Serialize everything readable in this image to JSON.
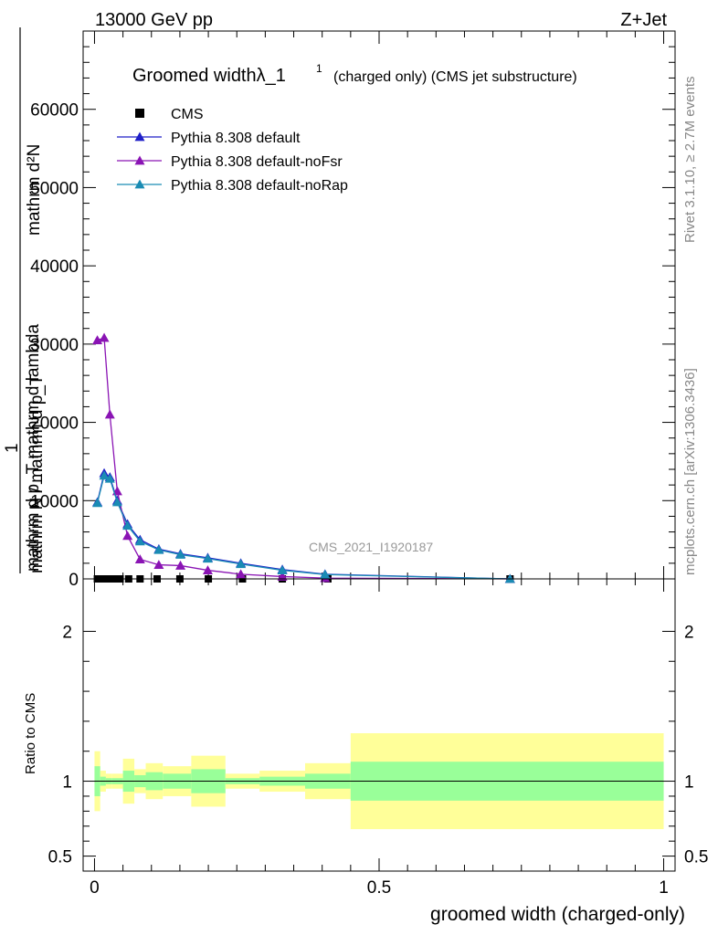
{
  "header": {
    "left": "13000 GeV pp",
    "right": "Z+Jet"
  },
  "side_labels": {
    "rivet": "Rivet 3.1.10, ≥ 2.7M events",
    "mcplots": "mcplots.cern.ch [arXiv:1306.3436]"
  },
  "watermark": "CMS_2021_I1920187",
  "colors": {
    "data": "#000000",
    "default": "#1f1fc8",
    "noFsr": "#8a14b4",
    "noRap": "#1a8cb4",
    "band_inner": "#99ff99",
    "band_outer": "#ffff99"
  },
  "chart_data": [
    {
      "type": "line",
      "title": "Groomed widthλ_1",
      "title_sup": "1",
      "subtitle": "(charged only) (CMS jet substructure)",
      "ylabel_num": "mathrm d²N",
      "ylabel_den": "mathrm d p_T mathrm d lambda",
      "ylabel_pre1": "1",
      "ylabel_pre2": "mathrm N / mathrm d p_T",
      "ylabel_sub": "T",
      "xlim": [
        -0.02,
        1.02
      ],
      "ylim": [
        0,
        70000
      ],
      "yticks": [
        {
          "v": 0,
          "label": "0"
        },
        {
          "v": 10000,
          "label": "10000"
        },
        {
          "v": 20000,
          "label": "20000"
        },
        {
          "v": 30000,
          "label": "30000"
        },
        {
          "v": 40000,
          "label": "40000"
        },
        {
          "v": 50000,
          "label": "50000"
        },
        {
          "v": 60000,
          "label": "60000"
        }
      ],
      "legend_position": "top-left",
      "series": [
        {
          "name": "CMS",
          "marker": "square",
          "x": [
            0.005,
            0.015,
            0.025,
            0.035,
            0.045,
            0.06,
            0.08,
            0.11,
            0.15,
            0.2,
            0.26,
            0.33,
            0.41,
            0.73
          ],
          "y": [
            0,
            0,
            0,
            0,
            0,
            0,
            0,
            0,
            0,
            0,
            0,
            0,
            0,
            0
          ]
        },
        {
          "name": "Pythia 8.308 default",
          "marker": "triangle",
          "x": [
            0.005,
            0.017,
            0.027,
            0.04,
            0.058,
            0.08,
            0.113,
            0.151,
            0.199,
            0.257,
            0.33,
            0.405,
            0.73
          ],
          "y": [
            9800,
            13500,
            13000,
            10000,
            7000,
            5000,
            3800,
            3200,
            2700,
            2000,
            1200,
            600,
            0
          ]
        },
        {
          "name": "Pythia 8.308 default-noFsr",
          "marker": "triangle",
          "x": [
            0.005,
            0.017,
            0.027,
            0.04,
            0.058,
            0.08,
            0.113,
            0.151,
            0.199,
            0.257,
            0.33,
            0.405,
            0.73
          ],
          "y": [
            30500,
            30800,
            21000,
            11200,
            5500,
            2500,
            1800,
            1700,
            1100,
            600,
            300,
            100,
            0
          ]
        },
        {
          "name": "Pythia 8.308 default-noRap",
          "marker": "triangle",
          "x": [
            0.005,
            0.017,
            0.027,
            0.04,
            0.058,
            0.08,
            0.113,
            0.151,
            0.199,
            0.257,
            0.33,
            0.405,
            0.73
          ],
          "y": [
            9700,
            13200,
            12800,
            9800,
            6800,
            4800,
            3700,
            3100,
            2600,
            1900,
            1100,
            550,
            0
          ]
        }
      ]
    },
    {
      "type": "area",
      "ylabel": "Ratio to CMS",
      "xlabel": "groomed width (charged-only)",
      "xlim": [
        -0.02,
        1.02
      ],
      "ylim": [
        0.4,
        2.35
      ],
      "xticks": [
        {
          "v": 0,
          "label": "0"
        },
        {
          "v": 0.5,
          "label": "0.5"
        },
        {
          "v": 1,
          "label": "1"
        }
      ],
      "yticks": [
        {
          "v": 0.5,
          "label": "0.5"
        },
        {
          "v": 1,
          "label": "1"
        },
        {
          "v": 2,
          "label": "2"
        }
      ],
      "bins": [
        {
          "x0": 0.0,
          "x1": 0.01,
          "inner": [
            0.9,
            1.1
          ],
          "outer": [
            0.8,
            1.2
          ]
        },
        {
          "x0": 0.01,
          "x1": 0.02,
          "inner": [
            0.97,
            1.03
          ],
          "outer": [
            0.93,
            1.07
          ]
        },
        {
          "x0": 0.02,
          "x1": 0.03,
          "inner": [
            0.98,
            1.02
          ],
          "outer": [
            0.95,
            1.05
          ]
        },
        {
          "x0": 0.03,
          "x1": 0.05,
          "inner": [
            0.98,
            1.02
          ],
          "outer": [
            0.95,
            1.05
          ]
        },
        {
          "x0": 0.05,
          "x1": 0.07,
          "inner": [
            0.93,
            1.07
          ],
          "outer": [
            0.85,
            1.15
          ]
        },
        {
          "x0": 0.07,
          "x1": 0.09,
          "inner": [
            0.96,
            1.04
          ],
          "outer": [
            0.92,
            1.08
          ]
        },
        {
          "x0": 0.09,
          "x1": 0.12,
          "inner": [
            0.94,
            1.06
          ],
          "outer": [
            0.88,
            1.12
          ]
        },
        {
          "x0": 0.12,
          "x1": 0.17,
          "inner": [
            0.95,
            1.05
          ],
          "outer": [
            0.9,
            1.1
          ]
        },
        {
          "x0": 0.17,
          "x1": 0.23,
          "inner": [
            0.92,
            1.08
          ],
          "outer": [
            0.83,
            1.17
          ]
        },
        {
          "x0": 0.23,
          "x1": 0.29,
          "inner": [
            0.98,
            1.02
          ],
          "outer": [
            0.95,
            1.05
          ]
        },
        {
          "x0": 0.29,
          "x1": 0.37,
          "inner": [
            0.97,
            1.03
          ],
          "outer": [
            0.93,
            1.07
          ]
        },
        {
          "x0": 0.37,
          "x1": 0.45,
          "inner": [
            0.95,
            1.05
          ],
          "outer": [
            0.88,
            1.12
          ]
        },
        {
          "x0": 0.45,
          "x1": 1.0,
          "inner": [
            0.87,
            1.13
          ],
          "outer": [
            0.68,
            1.32
          ]
        }
      ],
      "reference_line": 1
    }
  ]
}
